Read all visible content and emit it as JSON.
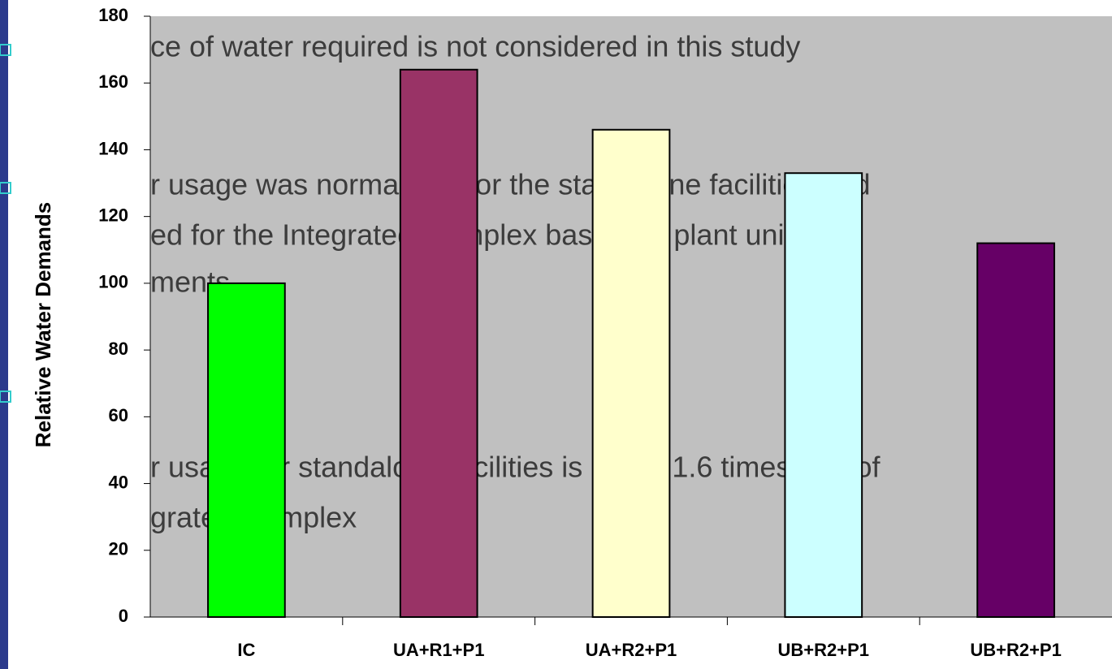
{
  "chart_data": {
    "type": "bar",
    "y_label": "Relative Water Demands",
    "categories": [
      "IC",
      "UA+R1+P1",
      "UA+R2+P1",
      "UB+R2+P1",
      "UB+R2+P1"
    ],
    "values": [
      100,
      164,
      146,
      133,
      112
    ],
    "colors": [
      "#00ff00",
      "#993366",
      "#ffffcc",
      "#ccffff",
      "#660066"
    ],
    "ylim": [
      0,
      180
    ],
    "yticks": [
      0,
      20,
      40,
      60,
      80,
      100,
      120,
      140,
      160,
      180
    ],
    "background": "#c0c0c0"
  },
  "bullets": [
    "ce of water required is not considered in this study",
    "r usage was normalized for the standalone facilities and",
    "ed for the Integrated Complex based on plant unit",
    "ments",
    "r usage for standalone facilities is 1.1 to 1.6 times that of",
    "grated Complex"
  ]
}
